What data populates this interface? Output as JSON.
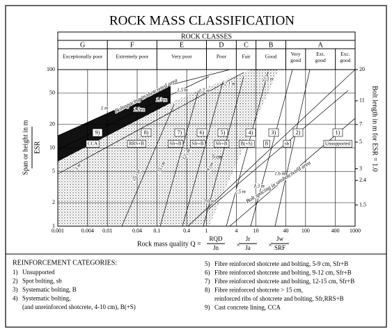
{
  "chart_data": {
    "type": "zone-chart",
    "title": "ROCK MASS CLASSIFICATION",
    "header": "ROCK CLASSES",
    "classes": [
      "G",
      "F",
      "E",
      "D",
      "C",
      "B",
      "A"
    ],
    "descriptions": [
      "Exceptionally poor",
      "Extremely poor",
      "Very poor",
      "Poor",
      "Fair",
      "Good",
      "Very good",
      "Ext. good",
      "Exc. good"
    ],
    "x_label": {
      "prefix": "Rock mass quality Q =",
      "operator": "×",
      "terms": [
        [
          "RQD",
          "Jn"
        ],
        [
          "Jr",
          "Ja"
        ],
        [
          "Jw",
          "SRF"
        ]
      ]
    },
    "y_label": [
      "Span or height in m",
      "ESR"
    ],
    "y2_label": "Bolt length in m for ESR = 1.0",
    "xlim": [
      0.001,
      1000
    ],
    "xticks": [
      0.001,
      0.004,
      0.01,
      0.04,
      0.1,
      0.4,
      1,
      4,
      10,
      40,
      100,
      400,
      1000
    ],
    "ylim": [
      1,
      100
    ],
    "yticks": [
      1,
      2,
      5,
      10,
      20,
      50,
      100
    ],
    "y2lim": [
      1,
      20
    ],
    "y2ticks": [
      20,
      11,
      7,
      5,
      3,
      2.4,
      1.5
    ],
    "log_x": true,
    "log_y": true,
    "grid": true,
    "categories": [
      "9)",
      "8)",
      "7)",
      "6)",
      "5)",
      "4)",
      "3)",
      "2)",
      "1)"
    ],
    "category_codes": [
      "CCA",
      "RRS+B",
      "Sfr+B",
      "Sfr+B",
      "Sfr+B",
      "B(+S)",
      "B",
      "sb",
      "Unsupported"
    ],
    "annotations": [
      "Bolt spacing in shotcreted area",
      "Bolt spacing in unshotcreted area",
      "1 m",
      "1.2 m",
      "1.3 m",
      "1.5 m",
      "1.7 m",
      "2.1 m",
      "2.3 m",
      "2.5 m",
      "1.3 m",
      "1.6 m",
      "2.0 m",
      "3 m",
      "25 cm",
      "15 cm",
      "12 cm",
      "9 cm",
      "5 cm"
    ],
    "legend": {
      "title": "REINFORCEMENT CATEGORIES:",
      "items": [
        [
          "1)",
          "Unsupported"
        ],
        [
          "2)",
          "Spot bolting, sb"
        ],
        [
          "3)",
          "Systematic bolting, B"
        ],
        [
          "4)",
          "Systematic bolting,",
          "(and unreinforced shotcrete, 4-10 cm), B(+S)"
        ],
        [
          "5)",
          "Fibre reinforced shotcrete and bolting, 5-9 cm, Sfr+B"
        ],
        [
          "6)",
          "Fibre reinforced shotcrete and bolting, 9-12 cm, Sfr+B"
        ],
        [
          "7)",
          "Fibre reinforced shotcrete and bolting, 12-15 cm, Sfr+B"
        ],
        [
          "8)",
          "Fibre reinforced shotcrete > 15 cm,",
          "reinforced ribs of shotcrete and bolting, Sfr,RRS+B"
        ],
        [
          "9)",
          "Cast concrete lining, CCA"
        ]
      ]
    }
  }
}
